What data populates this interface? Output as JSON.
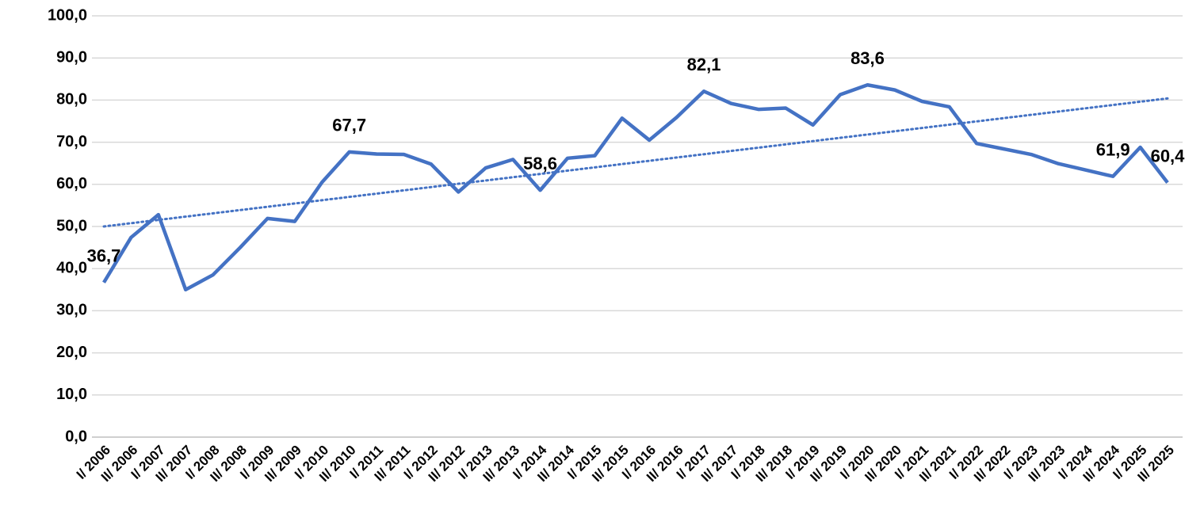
{
  "chart_data": {
    "type": "line",
    "categories": [
      "I/ 2006",
      "II/ 2006",
      "I/ 2007",
      "II/ 2007",
      "I/ 2008",
      "II/ 2008",
      "I/ 2009",
      "II/ 2009",
      "I/ 2010",
      "II/ 2010",
      "I/ 2011",
      "II/ 2011",
      "I/ 2012",
      "II/ 2012",
      "I/ 2013",
      "II/ 2013",
      "I/ 2014",
      "II/ 2014",
      "I/ 2015",
      "II/ 2015",
      "I/ 2016",
      "II/ 2016",
      "I/ 2017",
      "II/ 2017",
      "I/ 2018",
      "II/ 2018",
      "I/ 2019",
      "II/ 2019",
      "I/ 2020",
      "II/ 2020",
      "I/ 2021",
      "II/ 2021",
      "I/ 2022",
      "II/ 2022",
      "I/ 2023",
      "II/ 2023",
      "I/ 2024",
      "II/ 2024",
      "I/ 2025",
      "II/ 2025"
    ],
    "series": [
      {
        "color": "#4472c4",
        "values": [
          36.7,
          47.4,
          52.8,
          35.0,
          38.5,
          45.0,
          51.9,
          51.2,
          60.5,
          67.7,
          67.2,
          67.1,
          64.8,
          58.2,
          63.9,
          65.9,
          58.6,
          66.2,
          66.8,
          75.7,
          70.5,
          75.9,
          82.1,
          79.2,
          77.8,
          78.1,
          74.1,
          81.3,
          83.6,
          82.4,
          79.7,
          78.4,
          69.7,
          68.4,
          67.1,
          64.9,
          63.4,
          61.9,
          68.8,
          60.4
        ],
        "value_labels": [
          "36,7",
          null,
          null,
          null,
          null,
          null,
          null,
          null,
          null,
          "67,7",
          null,
          null,
          null,
          null,
          null,
          null,
          "58,6",
          null,
          null,
          null,
          null,
          null,
          "82,1",
          null,
          null,
          null,
          null,
          null,
          "83,6",
          null,
          null,
          null,
          null,
          null,
          null,
          null,
          null,
          "61,9",
          null,
          "60,4"
        ]
      }
    ],
    "trendline": {
      "values": [
        50.0,
        80.4
      ],
      "color": "#4472c4"
    },
    "ylim": [
      0,
      100
    ],
    "yticks": [
      {
        "value": 0,
        "label": "0,0"
      },
      {
        "value": 10,
        "label": "10,0"
      },
      {
        "value": 20,
        "label": "20,0"
      },
      {
        "value": 30,
        "label": "30,0"
      },
      {
        "value": 40,
        "label": "40,0"
      },
      {
        "value": 50,
        "label": "50,0"
      },
      {
        "value": 60,
        "label": "60,0"
      },
      {
        "value": 70,
        "label": "70,0"
      },
      {
        "value": 80,
        "label": "80,0"
      },
      {
        "value": 90,
        "label": "90,0"
      },
      {
        "value": 100,
        "label": "100,0"
      }
    ],
    "grid": true
  }
}
